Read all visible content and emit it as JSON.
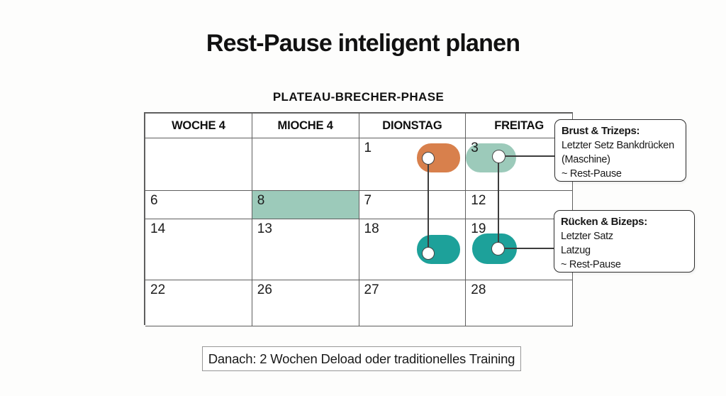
{
  "title": "Rest-Pause inteligent planen",
  "subtitle": "PLATEAU-BRECHER-PHASE",
  "calendar": {
    "headers": [
      "WOCHE 4",
      "MIOCHE 4",
      "DIONSTAG",
      "FREITAG"
    ],
    "rows": [
      [
        "",
        "",
        "1",
        "3"
      ],
      [
        "6",
        "8",
        "7",
        "12"
      ],
      [
        "14",
        "13",
        "18",
        "19"
      ],
      [
        "22",
        "26",
        "27",
        "28"
      ]
    ],
    "highlight": {
      "row_index": 1,
      "col_index": 1
    }
  },
  "markers": {
    "week1_dienstag_pill": {
      "color": "orange"
    },
    "week1_freitag_pill": {
      "color": "teal_light"
    },
    "week3_dienstag_pill": {
      "color": "teal_dark"
    },
    "week3_freitag_pill": {
      "color": "teal_dark"
    }
  },
  "callouts": {
    "brust": {
      "heading": "Brust & Trizeps:",
      "line1": "Letzter Setz Bankdrücken",
      "line2": "(Maschine)",
      "line3": "~ Rest-Pause"
    },
    "ruecken": {
      "heading": "Rücken & Bizeps:",
      "line1": "Letzter Satz",
      "line2": "Latzug",
      "line3": "~ Rest-Pause"
    }
  },
  "footnote": "Danach: 2 Wochen Deload oder traditionelles Training",
  "colors": {
    "orange": "#d8804c",
    "teal_light": "#9ccaba",
    "teal_dark": "#1da19a",
    "grid_line": "#5f5f5f",
    "connector": "#3c3c3c"
  }
}
